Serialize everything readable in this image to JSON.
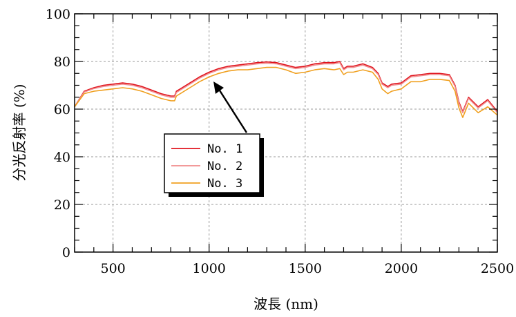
{
  "chart_data": {
    "type": "line",
    "xlabel": "波長 (nm)",
    "ylabel": "分光反射率 (%)",
    "xlim": [
      300,
      2500
    ],
    "ylim": [
      0,
      100
    ],
    "xticks": [
      500,
      1000,
      1500,
      2000,
      2500
    ],
    "yticks": [
      0,
      20,
      40,
      60,
      80,
      100
    ],
    "grid": true,
    "legend_position": "lower-left",
    "series": [
      {
        "name": "No. 1",
        "color": "#e0141e",
        "x": [
          300,
          350,
          400,
          450,
          500,
          550,
          600,
          650,
          700,
          750,
          800,
          820,
          830,
          850,
          900,
          950,
          1000,
          1050,
          1100,
          1150,
          1200,
          1250,
          1300,
          1350,
          1400,
          1450,
          1500,
          1550,
          1600,
          1650,
          1680,
          1700,
          1720,
          1750,
          1800,
          1850,
          1880,
          1900,
          1930,
          1950,
          2000,
          2050,
          2100,
          2150,
          2200,
          2250,
          2280,
          2300,
          2320,
          2350,
          2400,
          2450,
          2500
        ],
        "values": [
          61,
          67.5,
          69,
          70,
          70.5,
          71,
          70.5,
          69.5,
          68,
          66.5,
          65.5,
          65.5,
          67.5,
          68.5,
          71,
          73.5,
          75.5,
          77,
          78,
          78.5,
          79,
          79.5,
          79.8,
          79.5,
          78.5,
          77.5,
          78,
          79,
          79.5,
          79.5,
          80,
          77,
          78,
          78,
          79,
          77.5,
          75,
          71,
          69.5,
          70.5,
          71,
          74,
          74.5,
          75,
          75,
          74.5,
          70,
          63,
          59,
          65,
          61,
          64,
          59
        ]
      },
      {
        "name": "No. 2",
        "color": "#f08c8c",
        "x": [
          300,
          350,
          400,
          450,
          500,
          550,
          600,
          650,
          700,
          750,
          800,
          820,
          830,
          850,
          900,
          950,
          1000,
          1050,
          1100,
          1150,
          1200,
          1250,
          1300,
          1350,
          1400,
          1450,
          1500,
          1550,
          1600,
          1650,
          1680,
          1700,
          1720,
          1750,
          1800,
          1850,
          1880,
          1900,
          1930,
          1950,
          2000,
          2050,
          2100,
          2150,
          2200,
          2250,
          2280,
          2300,
          2320,
          2350,
          2400,
          2450,
          2500
        ],
        "values": [
          61,
          67.2,
          68.6,
          69.5,
          70,
          70.5,
          70,
          69,
          67.5,
          66,
          65,
          65,
          67,
          68,
          70.5,
          73,
          75,
          76.5,
          77.5,
          78,
          78.5,
          79,
          79.3,
          79,
          78,
          77,
          77.5,
          78.5,
          79,
          79,
          79.5,
          76.5,
          77.5,
          77.5,
          78.5,
          77,
          74.5,
          70.5,
          69,
          70,
          70.5,
          73.5,
          74,
          74.5,
          74.5,
          74,
          69.5,
          62.5,
          58.5,
          64.5,
          60.5,
          63.5,
          58.5
        ]
      },
      {
        "name": "No. 3",
        "color": "#f0a020",
        "x": [
          300,
          350,
          400,
          450,
          500,
          550,
          600,
          650,
          700,
          750,
          800,
          820,
          830,
          850,
          900,
          950,
          1000,
          1050,
          1100,
          1150,
          1200,
          1250,
          1300,
          1350,
          1400,
          1450,
          1500,
          1550,
          1600,
          1650,
          1680,
          1700,
          1720,
          1750,
          1800,
          1850,
          1880,
          1900,
          1930,
          1950,
          2000,
          2050,
          2100,
          2150,
          2200,
          2250,
          2280,
          2300,
          2320,
          2350,
          2400,
          2450,
          2500
        ],
        "values": [
          61,
          66.5,
          67.5,
          68,
          68.5,
          69,
          68.5,
          67.5,
          66,
          64.5,
          63.5,
          63.5,
          65.5,
          66.5,
          69,
          71.5,
          73.5,
          75,
          76,
          76.5,
          76.5,
          77,
          77.5,
          77.5,
          76.5,
          75,
          75.5,
          76.5,
          77,
          76.5,
          77,
          74.5,
          75.5,
          75.5,
          76.5,
          75.5,
          72.5,
          68.5,
          66.5,
          67.5,
          68.5,
          71.5,
          71.5,
          72.5,
          72.5,
          72,
          67.5,
          60.5,
          56.5,
          62.5,
          58.5,
          61,
          57.5
        ]
      }
    ]
  }
}
